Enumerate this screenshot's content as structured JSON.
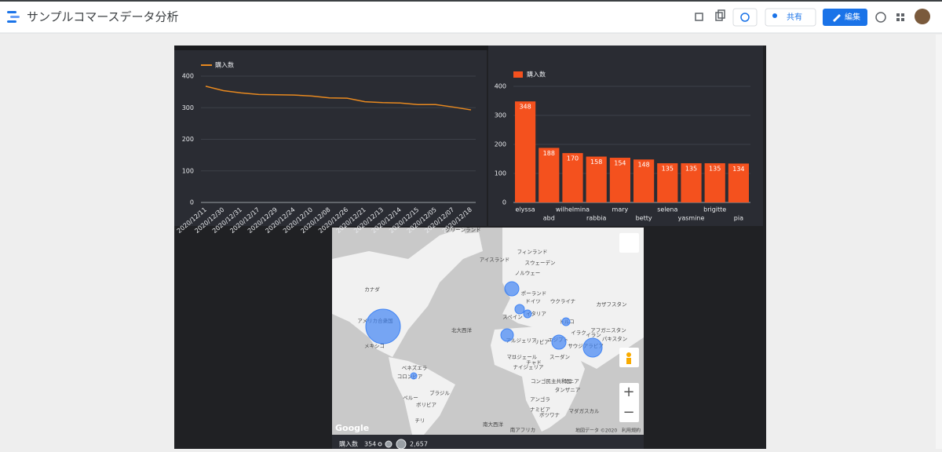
{
  "header": {
    "title": "サンプルコマースデータ分析",
    "share_button": "共有",
    "edit_button": "編集"
  },
  "chart_data": [
    {
      "type": "line",
      "categories": [
        "2020/12/11",
        "2020/12/30",
        "2020/12/31",
        "2020/12/17",
        "2020/12/29",
        "2020/12/24",
        "2020/12/10",
        "2020/12/08",
        "2020/12/26",
        "2020/12/21",
        "2020/12/13",
        "2020/12/14",
        "2020/12/15",
        "2020/12/05",
        "2020/12/07",
        "2020/12/18"
      ],
      "series": [
        {
          "name": "購入数",
          "color": "#e8891f",
          "values": [
            368,
            354,
            347,
            342,
            341,
            340,
            337,
            331,
            330,
            319,
            316,
            315,
            310,
            310,
            302,
            293
          ]
        }
      ],
      "ylim": [
        0,
        400
      ],
      "yticks": [
        0,
        100,
        200,
        300,
        400
      ],
      "grid": true
    },
    {
      "type": "bar",
      "categories": [
        "elyssa",
        "abd",
        "wilhelmina",
        "rabbia",
        "mary",
        "betty",
        "selena",
        "yasmine",
        "brigitte",
        "pia"
      ],
      "series": [
        {
          "name": "購入数",
          "color": "#f4511e",
          "values": [
            348,
            188,
            170,
            158,
            154,
            148,
            135,
            135,
            135,
            134
          ]
        }
      ],
      "ylim": [
        0,
        400
      ],
      "yticks": [
        0,
        100,
        200,
        300,
        400
      ],
      "grid": true
    }
  ],
  "map": {
    "legend_title": "購入数",
    "size_legend": [
      354,
      {
        "value": 2657,
        "label": "2,657"
      }
    ],
    "labels": [
      "グリーンランド",
      "アイスランド",
      "フィンランド",
      "スウェーデン",
      "ノルウェー",
      "カナダ",
      "ポーランド",
      "ドイツ",
      "ウクライナ",
      "カザフスタン",
      "スペイン",
      "イタリア",
      "トルコ",
      "アメリカ合衆国",
      "北大西洋",
      "アフガニスタン",
      "イラク",
      "イラン",
      "パキスタン",
      "アルジェリア",
      "リビア",
      "エジプト",
      "サウジアラビア",
      "メキシコ",
      "マリ",
      "ニジェール",
      "チャド",
      "スーダン",
      "ナイジェリア",
      "ベネズエラ",
      "コロンビア",
      "ブラジル",
      "ペルー",
      "ボリビア",
      "チリ",
      "コンゴ民主共和国",
      "ケニア",
      "タンザニア",
      "アンゴラ",
      "ナミビア",
      "ボツワナ",
      "マダガスカル",
      "南大西洋",
      "南アフリカ"
    ],
    "attribution": "Google",
    "map_data": "地図データ ©2020",
    "terms": "利用規約"
  }
}
